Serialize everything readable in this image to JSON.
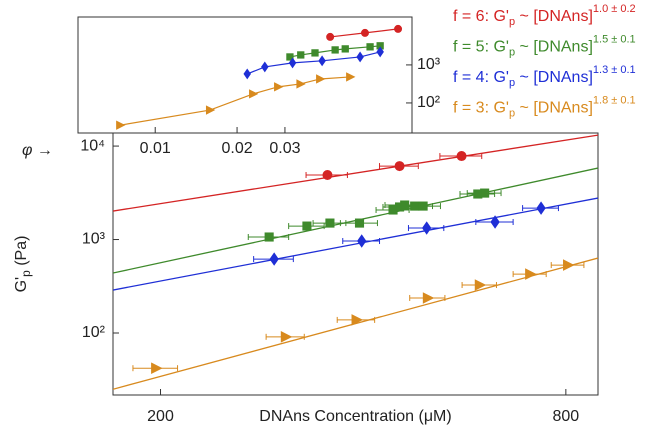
{
  "chart_data": [
    {
      "type": "scatter",
      "xscale": "log",
      "yscale": "log",
      "xlabel": "DNAns Concentration (μM)",
      "ylabel": [
        "G'",
        "p",
        " (Pa)"
      ],
      "xlim": [
        170,
        893
      ],
      "ylim": [
        21.7,
        13800
      ],
      "xticks": [
        200,
        800
      ],
      "yticks": [
        {
          "value": 100,
          "label": "10²"
        },
        {
          "value": 1000,
          "label": "10³"
        },
        {
          "value": 10000,
          "label": "10⁴"
        }
      ],
      "series": [
        {
          "name_parts": [
            "f = 6: G'",
            "p",
            " ~ [DNAns]",
            "1.0 ± 0.2"
          ],
          "color": "#d42424",
          "marker": "circle",
          "x": [
            354,
            453,
            560
          ],
          "values": [
            4900,
            6110,
            7820
          ],
          "xerr": [
            25,
            30,
            40
          ],
          "fit": {
            "x": [
              170,
              893
            ],
            "values": [
              2017,
              13100
            ]
          }
        },
        {
          "name_parts": [
            "f = 5: G'",
            "p",
            " ~ [DNAns]",
            "1.5 ± 0.1"
          ],
          "color": "#3f8a2c",
          "marker": "square",
          "x": [
            290,
            330,
            357,
            395,
            443,
            453,
            461,
            477,
            491,
            592,
            606
          ],
          "values": [
            1064,
            1393,
            1500,
            1500,
            2070,
            2230,
            2340,
            2280,
            2280,
            3070,
            3140
          ],
          "xerr": [
            20,
            20,
            20,
            25,
            25,
            25,
            30,
            30,
            30,
            35,
            35
          ],
          "fit": {
            "x": [
              170,
              893
            ],
            "values": [
              438,
              5820
            ]
          }
        },
        {
          "name_parts": [
            "f = 4: G'",
            "p",
            " ~ [DNAns]",
            "1.3 ± 0.1"
          ],
          "color": "#1f2fd6",
          "marker": "diamond",
          "x": [
            295,
            398,
            497,
            628,
            735
          ],
          "values": [
            618,
            964,
            1327,
            1540,
            2170
          ],
          "xerr": [
            20,
            25,
            30,
            40,
            45
          ],
          "fit": {
            "x": [
              170,
              893
            ],
            "values": [
              288,
              2780
            ]
          }
        },
        {
          "name_parts": [
            "f = 3: G'",
            "p",
            " ~ [DNAns]",
            "1.8 ± 0.1"
          ],
          "color": "#d88a1e",
          "marker": "triangle",
          "x": [
            197,
            307,
            391,
            499,
            596,
            708,
            806
          ],
          "values": [
            42,
            91,
            138,
            237,
            326,
            427,
            533
          ],
          "xerr": [
            15,
            20,
            25,
            30,
            35,
            40,
            45
          ],
          "fit": {
            "x": [
              170,
              893
            ],
            "values": [
              25,
              634
            ]
          }
        }
      ]
    },
    {
      "type": "line",
      "xscale": "log",
      "yscale": "log",
      "xlabel": "φ →",
      "xlim": [
        0.0052,
        0.088
      ],
      "ylim": [
        16.2,
        18200
      ],
      "xticks": [
        0.01,
        0.02,
        0.03
      ],
      "yticks": [
        {
          "value": 100,
          "label": "10²"
        },
        {
          "value": 1000,
          "label": "10³"
        }
      ],
      "series": [
        {
          "color": "#d42424",
          "marker": "circle",
          "x": [
            0.044,
            0.0591,
            0.0782
          ],
          "values": [
            5450,
            6950,
            8850
          ]
        },
        {
          "color": "#3f8a2c",
          "marker": "square",
          "x": [
            0.0313,
            0.0343,
            0.0387,
            0.0459,
            0.05,
            0.0617,
            0.0672
          ],
          "values": [
            1620,
            1830,
            2070,
            2480,
            2640,
            2990,
            3180
          ]
        },
        {
          "color": "#1f2fd6",
          "marker": "diamond",
          "x": [
            0.0218,
            0.0253,
            0.032,
            0.0411,
            0.0567,
            0.0672
          ],
          "values": [
            580,
            885,
            1130,
            1280,
            1620,
            2200
          ]
        },
        {
          "color": "#d88a1e",
          "marker": "triangle",
          "x": [
            0.00743,
            0.0159,
            0.0229,
            0.0283,
            0.0342,
            0.0404,
            0.0521
          ],
          "values": [
            26,
            65,
            173,
            265,
            316,
            427,
            483
          ]
        }
      ]
    }
  ]
}
